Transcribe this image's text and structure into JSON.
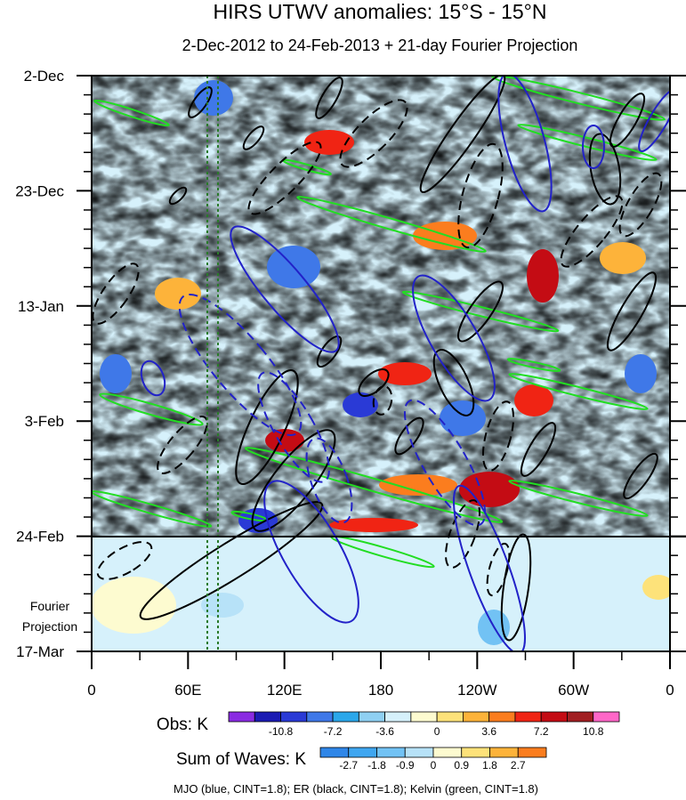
{
  "chart_data": {
    "type": "heatmap",
    "title": "HIRS UTWV anomalies: 15°S - 15°N",
    "subtitle": "2-Dec-2012 to 24-Feb-2013 + 21-day Fourier Projection",
    "x_ticks": [
      "0",
      "60E",
      "120E",
      "180",
      "120W",
      "60W",
      "0"
    ],
    "y_ticks": [
      "2-Dec",
      "23-Dec",
      "13-Jan",
      "3-Feb",
      "24-Feb",
      "17-Mar"
    ],
    "projection_label": [
      "Fourier",
      "Projection"
    ],
    "projection_boundary": "24-Feb",
    "reference_lines": [
      "70E",
      "80E"
    ],
    "obs_colorbar": {
      "label": "Obs: K",
      "tick_labels": [
        "-10.8",
        "-7.2",
        "-3.6",
        "0",
        "3.6",
        "7.2",
        "10.8"
      ],
      "colors": [
        "#8a2be2",
        "#1b1bb3",
        "#2a3ad6",
        "#3f78e8",
        "#2ba7ea",
        "#8fd0f2",
        "#d6f1fb",
        "#fdfbd0",
        "#fde27a",
        "#fdb33a",
        "#fb7d1e",
        "#f02414",
        "#c40c14",
        "#a11f22",
        "#ff67c8"
      ]
    },
    "waves_colorbar": {
      "label": "Sum of Waves: K",
      "tick_labels": [
        "-2.7",
        "-1.8",
        "-0.9",
        "0",
        "0.9",
        "1.8",
        "2.7"
      ],
      "colors": [
        "#2f86e8",
        "#3fa6f0",
        "#72c2f4",
        "#b7e2f8",
        "#fdfbd0",
        "#fde27a",
        "#fdb33a",
        "#fb7d1e"
      ]
    },
    "footnote": "MJO (blue, CINT=1.8); ER (black, CINT=1.8); Kelvin (green, CINT=1.8)",
    "contours": [
      {
        "name": "MJO",
        "color": "#2222c8"
      },
      {
        "name": "ER",
        "color": "#000000"
      },
      {
        "name": "Kelvin",
        "color": "#22dd22"
      }
    ]
  }
}
